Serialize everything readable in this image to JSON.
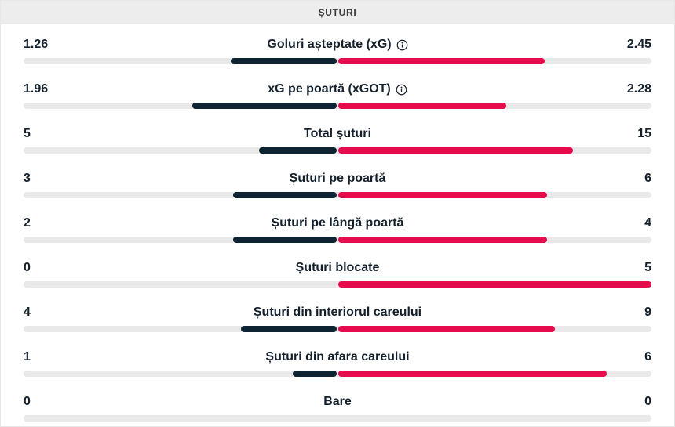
{
  "header": {
    "title": "ȘUTURI"
  },
  "colors": {
    "home": "#0e2433",
    "away": "#e50b4c",
    "track": "#e9e9e9",
    "header_bg": "#ededed",
    "header_text": "#3c3c3c",
    "text": "#14202b"
  },
  "icons": {
    "info": "info-circle-icon"
  },
  "stats": [
    {
      "label": "Goluri așteptate (xG)",
      "home_display": "1.26",
      "away_display": "2.45",
      "home": 1.26,
      "away": 2.45,
      "info": true
    },
    {
      "label": "xG pe poartă (xGOT)",
      "home_display": "1.96",
      "away_display": "2.28",
      "home": 1.96,
      "away": 2.28,
      "info": true
    },
    {
      "label": "Total șuturi",
      "home_display": "5",
      "away_display": "15",
      "home": 5,
      "away": 15,
      "info": false
    },
    {
      "label": "Șuturi pe poartă",
      "home_display": "3",
      "away_display": "6",
      "home": 3,
      "away": 6,
      "info": false
    },
    {
      "label": "Șuturi pe lângă poartă",
      "home_display": "2",
      "away_display": "4",
      "home": 2,
      "away": 4,
      "info": false
    },
    {
      "label": "Șuturi blocate",
      "home_display": "0",
      "away_display": "5",
      "home": 0,
      "away": 5,
      "info": false
    },
    {
      "label": "Șuturi din interiorul careului",
      "home_display": "4",
      "away_display": "9",
      "home": 4,
      "away": 9,
      "info": false
    },
    {
      "label": "Șuturi din afara careului",
      "home_display": "1",
      "away_display": "6",
      "home": 1,
      "away": 6,
      "info": false
    },
    {
      "label": "Bare",
      "home_display": "0",
      "away_display": "0",
      "home": 0,
      "away": 0,
      "info": false
    }
  ],
  "chart_data": {
    "type": "bar",
    "title": "ȘUTURI",
    "layout": "horizontal diverging bars from center; each side length = value / (home + away) of half-track width; empty track when both values are 0",
    "categories": [
      "Goluri așteptate (xG)",
      "xG pe poartă (xGOT)",
      "Total șuturi",
      "Șuturi pe poartă",
      "Șuturi pe lângă poartă",
      "Șuturi blocate",
      "Șuturi din interiorul careului",
      "Șuturi din afara careului",
      "Bare"
    ],
    "series": [
      {
        "name": "home",
        "color": "#0e2433",
        "values": [
          1.26,
          1.96,
          5,
          3,
          2,
          0,
          4,
          1,
          0
        ]
      },
      {
        "name": "away",
        "color": "#e50b4c",
        "values": [
          2.45,
          2.28,
          15,
          6,
          4,
          5,
          9,
          6,
          0
        ]
      }
    ],
    "legend": "none",
    "grid": false
  }
}
